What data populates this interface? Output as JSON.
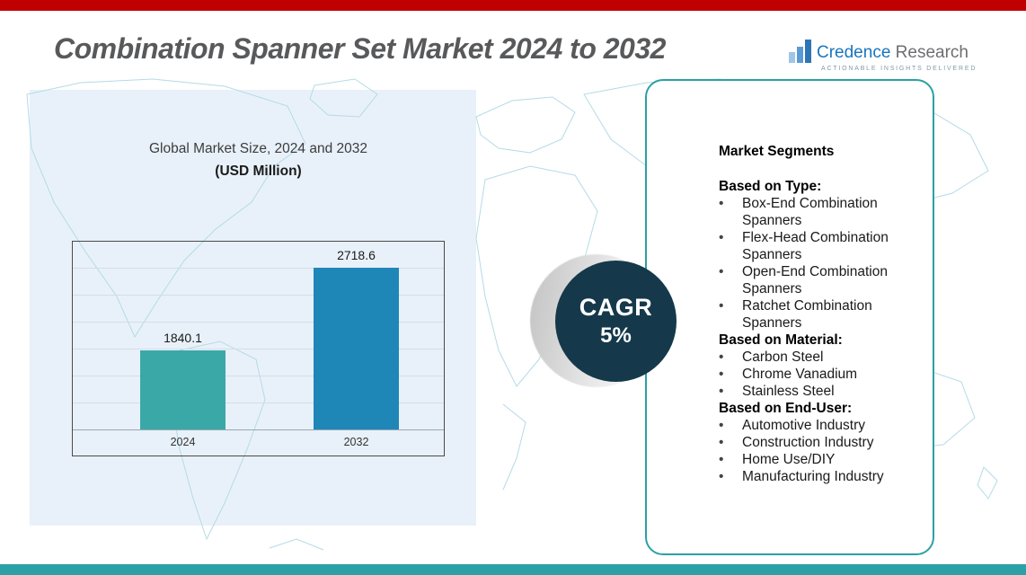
{
  "header": {
    "title": "Combination Spanner Set Market 2024 to 2032"
  },
  "logo": {
    "name_primary": "Credence",
    "name_secondary": "Research",
    "tagline": "Actionable Insights Delivered"
  },
  "chart": {
    "title": "Global Market Size, 2024 and 2032",
    "subtitle": "(USD Million)"
  },
  "chart_data": {
    "type": "bar",
    "title": "Global Market Size, 2024 and 2032 (USD Million)",
    "categories": [
      "2024",
      "2032"
    ],
    "values": [
      1840.1,
      2718.6
    ],
    "value_labels": [
      "1840.1",
      "2718.6"
    ],
    "xlabel": "",
    "ylabel": "USD Million",
    "ylim": [
      1000,
      3000
    ],
    "gridlines": true,
    "legend": "none",
    "bar_colors": [
      "#3ba8a8",
      "#1f86b8"
    ]
  },
  "cagr": {
    "label": "CAGR",
    "value": "5%"
  },
  "segments": {
    "heading": "Market Segments",
    "bullet": "•",
    "groups": [
      {
        "title": "Based on Type:",
        "items": [
          "Box-End Combination Spanners",
          "Flex-Head Combination Spanners",
          "Open-End Combination Spanners",
          "Ratchet Combination Spanners"
        ]
      },
      {
        "title": "Based on Material:",
        "items": [
          "Carbon Steel",
          "Chrome Vanadium",
          "Stainless Steel"
        ]
      },
      {
        "title": "Based on End-User:",
        "items": [
          "Automotive Industry",
          "Construction Industry",
          "Home Use/DIY",
          "Manufacturing Industry"
        ]
      }
    ]
  },
  "colors": {
    "top_bar": "#c00000",
    "bottom_bar": "#2ba0a6",
    "bar_2024": "#3ba8a8",
    "bar_2032": "#1f86b8",
    "cagr_circle": "#15394b",
    "panel_border": "#2ba0a6",
    "title_text": "#58595b",
    "map_line": "#b5dae7",
    "backdrop": "#e8f1f9"
  }
}
